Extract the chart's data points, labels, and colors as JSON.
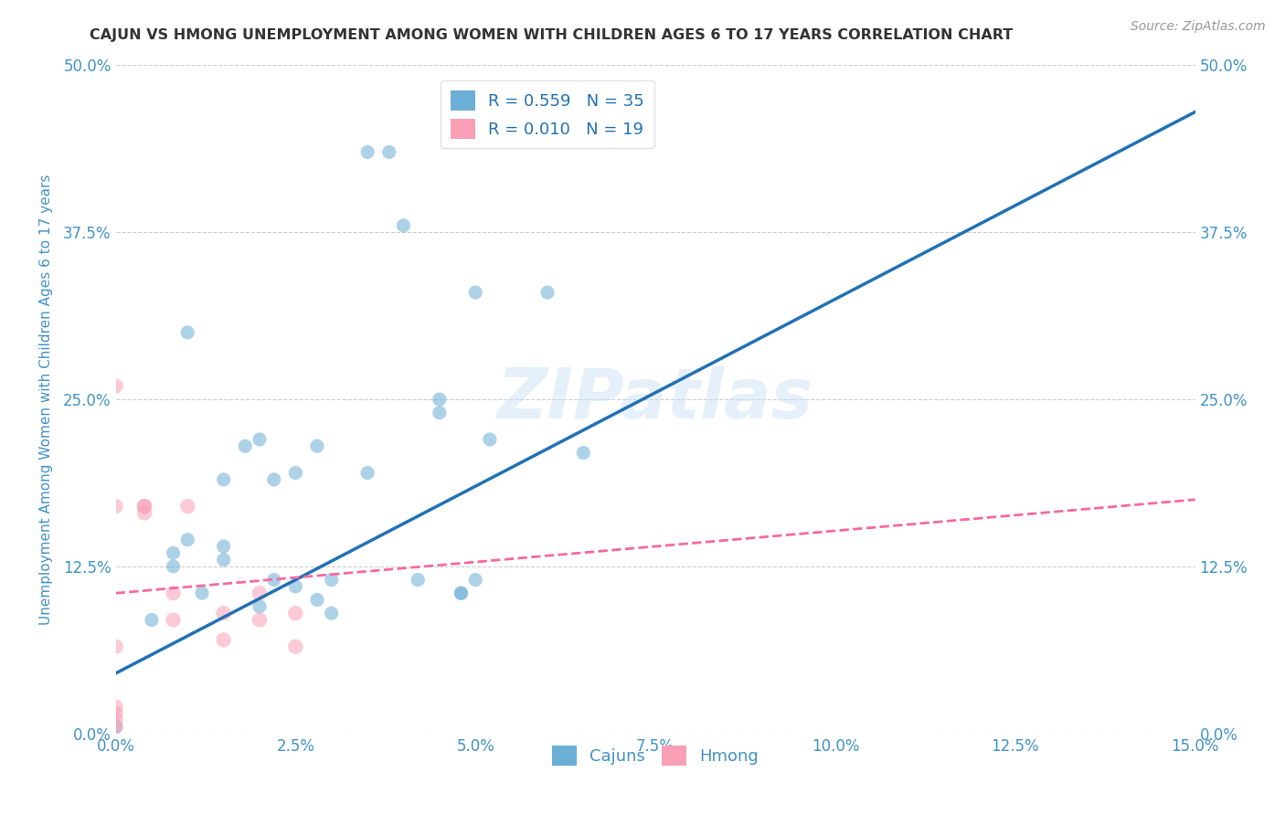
{
  "title": "CAJUN VS HMONG UNEMPLOYMENT AMONG WOMEN WITH CHILDREN AGES 6 TO 17 YEARS CORRELATION CHART",
  "source": "Source: ZipAtlas.com",
  "ylabel_label": "Unemployment Among Women with Children Ages 6 to 17 years",
  "x_tick_labels": [
    "0.0%",
    "2.5%",
    "5.0%",
    "7.5%",
    "10.0%",
    "12.5%",
    "15.0%"
  ],
  "x_tick_values": [
    0.0,
    0.025,
    0.05,
    0.075,
    0.1,
    0.125,
    0.15
  ],
  "y_tick_labels": [
    "0.0%",
    "12.5%",
    "25.0%",
    "37.5%",
    "50.0%"
  ],
  "y_tick_values": [
    0.0,
    0.125,
    0.25,
    0.375,
    0.5
  ],
  "xlim": [
    0.0,
    0.15
  ],
  "ylim": [
    0.0,
    0.5
  ],
  "cajun_R": 0.559,
  "cajun_N": 35,
  "hmong_R": 0.01,
  "hmong_N": 19,
  "cajun_color": "#6baed6",
  "hmong_color": "#fa9fb5",
  "cajun_line_color": "#2171b5",
  "hmong_line_color": "#f768a1",
  "watermark": "ZIPatlas",
  "cajun_x": [
    0.0,
    0.005,
    0.008,
    0.008,
    0.01,
    0.01,
    0.012,
    0.015,
    0.015,
    0.015,
    0.018,
    0.02,
    0.02,
    0.022,
    0.022,
    0.025,
    0.025,
    0.028,
    0.028,
    0.03,
    0.03,
    0.035,
    0.035,
    0.038,
    0.04,
    0.042,
    0.045,
    0.045,
    0.048,
    0.048,
    0.05,
    0.05,
    0.052,
    0.06,
    0.065
  ],
  "cajun_y": [
    0.005,
    0.085,
    0.135,
    0.125,
    0.145,
    0.3,
    0.105,
    0.13,
    0.14,
    0.19,
    0.215,
    0.095,
    0.22,
    0.115,
    0.19,
    0.195,
    0.11,
    0.215,
    0.1,
    0.09,
    0.115,
    0.435,
    0.195,
    0.435,
    0.38,
    0.115,
    0.25,
    0.24,
    0.105,
    0.105,
    0.33,
    0.115,
    0.22,
    0.33,
    0.21
  ],
  "hmong_x": [
    0.0,
    0.0,
    0.0,
    0.0,
    0.0,
    0.0,
    0.0,
    0.004,
    0.004,
    0.004,
    0.008,
    0.008,
    0.01,
    0.015,
    0.015,
    0.02,
    0.02,
    0.025,
    0.025
  ],
  "hmong_y": [
    0.005,
    0.01,
    0.015,
    0.02,
    0.065,
    0.17,
    0.26,
    0.17,
    0.165,
    0.17,
    0.105,
    0.085,
    0.17,
    0.07,
    0.09,
    0.085,
    0.105,
    0.065,
    0.09
  ],
  "cajun_line_x0": 0.0,
  "cajun_line_y0": 0.045,
  "cajun_line_x1": 0.15,
  "cajun_line_y1": 0.465,
  "hmong_line_x0": 0.0,
  "hmong_line_y0": 0.105,
  "hmong_line_x1": 0.15,
  "hmong_line_y1": 0.175,
  "cajun_marker_size": 120,
  "hmong_marker_size": 140,
  "background_color": "#ffffff",
  "grid_color": "#cccccc",
  "title_color": "#333333",
  "axis_label_color": "#4292c6",
  "tick_color": "#4292c6",
  "source_color": "#999999"
}
